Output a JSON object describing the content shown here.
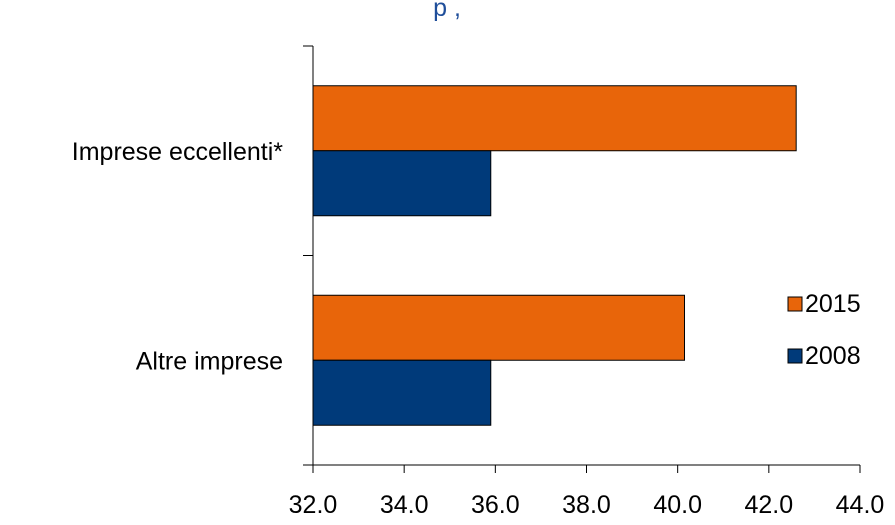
{
  "chart_data": {
    "type": "bar",
    "orientation": "horizontal",
    "title": "",
    "title_fragment": "p        , ",
    "categories": [
      "Imprese eccellenti*",
      "Altre imprese"
    ],
    "series": [
      {
        "name": "2015",
        "color": "#E8650A",
        "values": [
          42.6,
          40.15
        ]
      },
      {
        "name": "2008",
        "color": "#003A7A",
        "values": [
          35.9,
          35.9
        ]
      }
    ],
    "xlim": [
      32.0,
      44.0
    ],
    "xticks": [
      "32.0",
      "34.0",
      "36.0",
      "38.0",
      "40.0",
      "42.0",
      "44.0"
    ],
    "xlabel": "",
    "ylabel": "",
    "grid": false,
    "legend_position": "right",
    "title_color": "#1F4E9A"
  }
}
